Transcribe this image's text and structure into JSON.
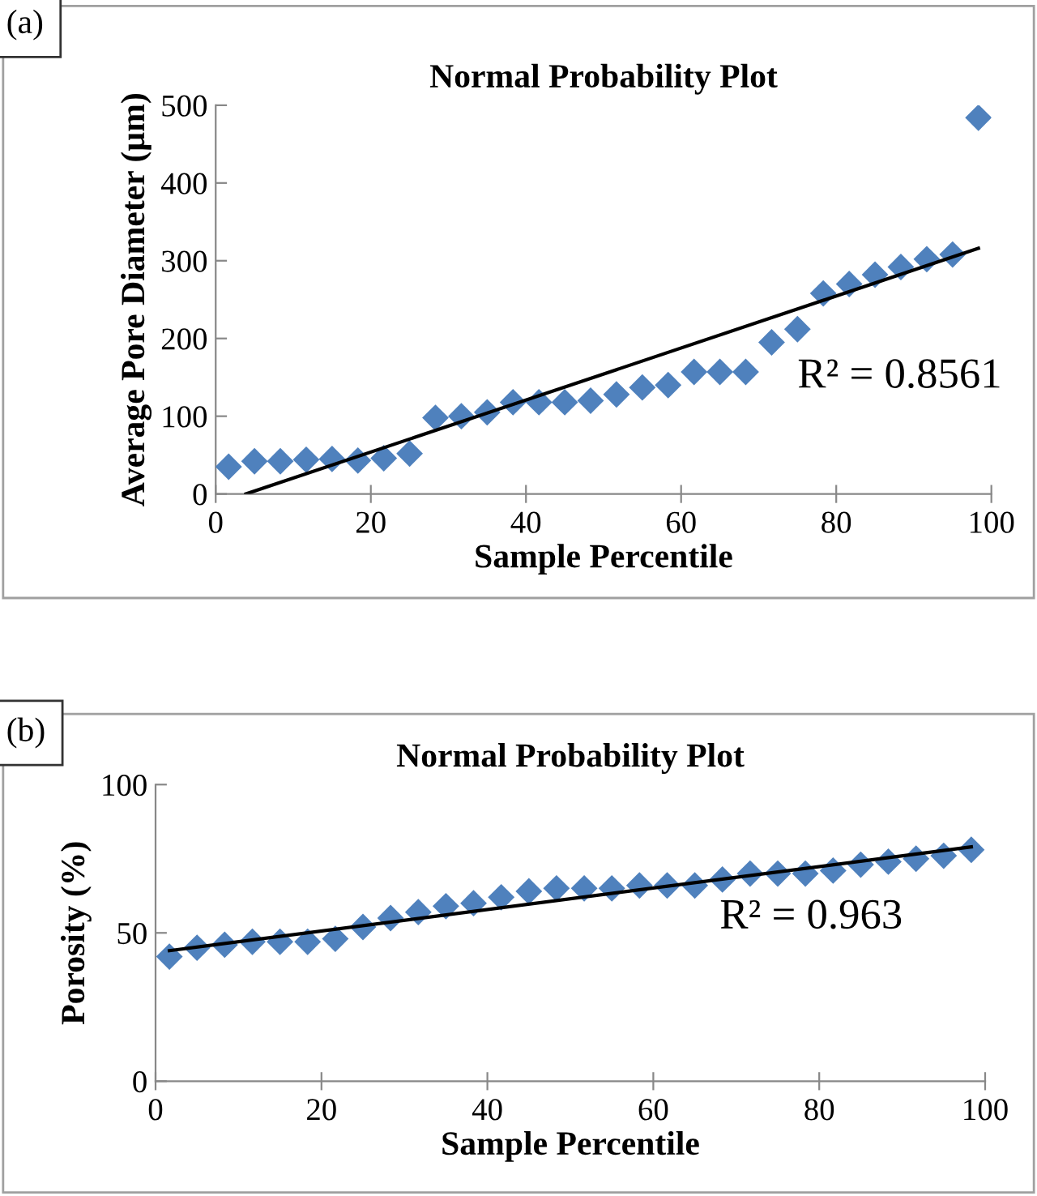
{
  "chart_data": [
    {
      "type": "scatter",
      "title": "Normal Probability Plot",
      "xlabel": "Sample Percentile",
      "ylabel": "Average Pore Diameter (µm)",
      "x": [
        1.67,
        5,
        8.33,
        11.67,
        15,
        18.33,
        21.67,
        25,
        28.33,
        31.67,
        35,
        38.33,
        41.67,
        45,
        48.33,
        51.67,
        55,
        58.33,
        61.67,
        65,
        68.33,
        71.67,
        75,
        78.33,
        81.67,
        85,
        88.33,
        91.67,
        95,
        98.33
      ],
      "series": [
        {
          "color": "#4f81bd",
          "marker": "diamond",
          "values": [
            35,
            42,
            42,
            44,
            45,
            43,
            46,
            52,
            98,
            100,
            105,
            118,
            118,
            118,
            120,
            128,
            137,
            140,
            157,
            157,
            157,
            195,
            212,
            258,
            270,
            282,
            292,
            302,
            308,
            484
          ]
        },
        {
          "type": "line",
          "color": "#000000",
          "x": [
            3.9,
            98.33
          ],
          "values": [
            0,
            316
          ]
        }
      ],
      "xlim": [
        0,
        100
      ],
      "xticks": [
        0,
        20,
        40,
        60,
        80,
        100
      ],
      "ylim": [
        0,
        500
      ],
      "yticks": [
        0,
        100,
        200,
        300,
        400,
        500
      ],
      "grid": false,
      "legend": false,
      "annotations": [
        "(a)",
        "R² = 0.8561"
      ]
    },
    {
      "type": "scatter",
      "title": "Normal Probability Plot",
      "xlabel": "Sample Percentile",
      "ylabel": "Porosity (%)",
      "x": [
        1.67,
        5,
        8.33,
        11.67,
        15,
        18.33,
        21.67,
        25,
        28.33,
        31.67,
        35,
        38.33,
        41.67,
        45,
        48.33,
        51.67,
        55,
        58.33,
        61.67,
        65,
        68.33,
        71.67,
        75,
        78.33,
        81.67,
        85,
        88.33,
        91.67,
        95,
        98.33
      ],
      "series": [
        {
          "color": "#4f81bd",
          "marker": "diamond",
          "values": [
            42,
            45,
            46,
            47,
            47,
            47,
            48,
            52,
            55,
            57,
            59,
            60,
            62,
            64,
            65,
            65,
            65,
            66,
            66,
            66,
            68,
            70,
            70,
            70,
            71,
            73,
            74,
            75,
            76,
            78
          ]
        },
        {
          "type": "line",
          "color": "#000000",
          "x": [
            1.67,
            98.33
          ],
          "values": [
            44,
            79
          ]
        }
      ],
      "xlim": [
        0,
        100
      ],
      "xticks": [
        0,
        20,
        40,
        60,
        80,
        100
      ],
      "ylim": [
        0,
        100
      ],
      "yticks": [
        0,
        50,
        100
      ],
      "grid": false,
      "legend": false,
      "annotations": [
        "(b)",
        "R² = 0.963"
      ]
    }
  ]
}
